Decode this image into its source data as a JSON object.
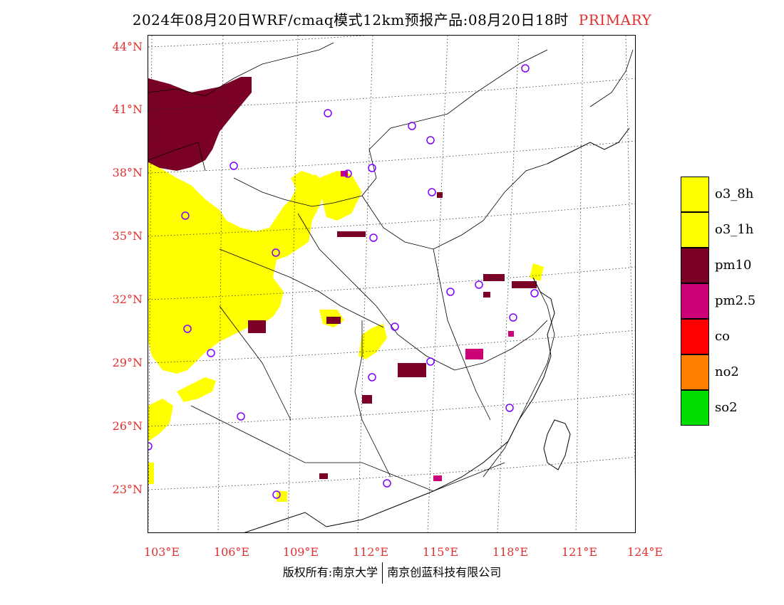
{
  "title": {
    "main": "2024年08月20日WRF/cmaq模式12km预报产品:08月20日18时",
    "tag": "PRIMARY"
  },
  "lat_labels": [
    "44°N",
    "41°N",
    "38°N",
    "35°N",
    "32°N",
    "29°N",
    "26°N",
    "23°N"
  ],
  "lon_labels": [
    "103°E",
    "106°E",
    "109°E",
    "112°E",
    "115°E",
    "118°E",
    "121°E",
    "124°E"
  ],
  "legend": [
    {
      "label": "o3_8h",
      "color": "#ffff00"
    },
    {
      "label": "o3_1h",
      "color": "#ffff00"
    },
    {
      "label": "pm10",
      "color": "#7a0026"
    },
    {
      "label": "pm2.5",
      "color": "#cc0077"
    },
    {
      "label": "co",
      "color": "#ff0000"
    },
    {
      "label": "no2",
      "color": "#ff7f00"
    },
    {
      "label": "so2",
      "color": "#00dd00"
    }
  ],
  "footer": {
    "left": "版权所有:南京大学",
    "right": "南京创蓝科技有限公司"
  },
  "colors": {
    "accent_red": "#e03030",
    "o3": "#ffff00",
    "pm10": "#7a0026",
    "pm25": "#cc0077",
    "station_marker": "#8000ff"
  }
}
